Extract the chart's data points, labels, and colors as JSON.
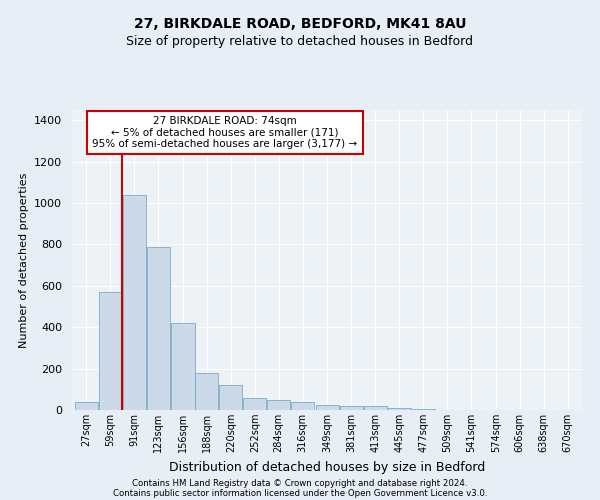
{
  "title1": "27, BIRKDALE ROAD, BEDFORD, MK41 8AU",
  "title2": "Size of property relative to detached houses in Bedford",
  "xlabel": "Distribution of detached houses by size in Bedford",
  "ylabel": "Number of detached properties",
  "footer1": "Contains HM Land Registry data © Crown copyright and database right 2024.",
  "footer2": "Contains public sector information licensed under the Open Government Licence v3.0.",
  "annotation_title": "27 BIRKDALE ROAD: 74sqm",
  "annotation_line1": "← 5% of detached houses are smaller (171)",
  "annotation_line2": "95% of semi-detached houses are larger (3,177) →",
  "bar_color": "#ccd9e8",
  "bar_edge_color": "#7aaac8",
  "vline_color": "#cc0000",
  "vline_x": 74,
  "categories": [
    "27sqm",
    "59sqm",
    "91sqm",
    "123sqm",
    "156sqm",
    "188sqm",
    "220sqm",
    "252sqm",
    "284sqm",
    "316sqm",
    "349sqm",
    "381sqm",
    "413sqm",
    "445sqm",
    "477sqm",
    "509sqm",
    "541sqm",
    "574sqm",
    "606sqm",
    "638sqm",
    "670sqm"
  ],
  "bin_edges": [
    27,
    59,
    91,
    123,
    156,
    188,
    220,
    252,
    284,
    316,
    349,
    381,
    413,
    445,
    477,
    509,
    541,
    574,
    606,
    638,
    670
  ],
  "bin_width": 32,
  "values": [
    40,
    570,
    1040,
    790,
    420,
    180,
    120,
    60,
    50,
    40,
    25,
    20,
    18,
    10,
    5,
    2,
    1,
    0,
    0,
    0,
    0
  ],
  "ylim": [
    0,
    1450
  ],
  "yticks": [
    0,
    200,
    400,
    600,
    800,
    1000,
    1200,
    1400
  ],
  "bg_color": "#e8eef5",
  "plot_bg_color": "#edf2f7",
  "grid_color": "#ffffff",
  "title1_fontsize": 10,
  "title2_fontsize": 9,
  "xlabel_fontsize": 9,
  "ylabel_fontsize": 8,
  "annotation_fontsize": 7.5,
  "tick_fontsize": 7,
  "annotation_box_color": "#ffffff",
  "annotation_box_edge": "#cc0000"
}
